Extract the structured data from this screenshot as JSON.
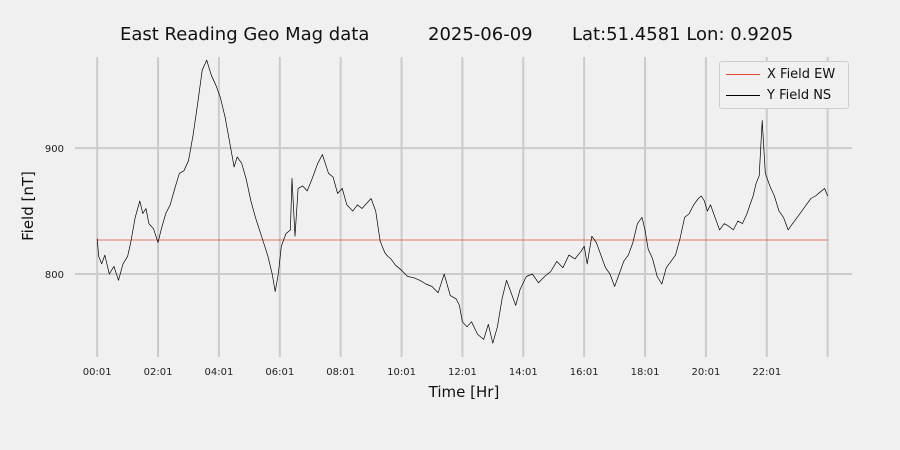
{
  "title": {
    "main": "East Reading Geo Mag data",
    "date": "2025-06-09",
    "location": "Lat:51.4581  Lon: 0.9205"
  },
  "colors": {
    "background": "#f0f0f0",
    "grid": "#cbcbcb",
    "x_series": "#e24a33",
    "y_series": "#000000"
  },
  "chart_data": {
    "type": "line",
    "title": "East Reading Geo Mag data        2025-06-09      Lat:51.4581  Lon: 0.9205",
    "xlabel": "Time  [Hr]",
    "ylabel": "Field  [nT]",
    "x_unit": "hours",
    "xlim": [
      -0.4,
      24.8
    ],
    "ylim": [
      734,
      982
    ],
    "x_ticks": [
      0,
      2,
      4,
      6,
      8,
      10,
      12,
      14,
      16,
      18,
      20,
      22,
      24
    ],
    "x_tick_labels": [
      "00:01",
      "02:01",
      "04:01",
      "06:01",
      "08:01",
      "10:01",
      "12:01",
      "14:01",
      "16:01",
      "18:01",
      "20:01",
      "22:01",
      ""
    ],
    "y_ticks": [
      800,
      900
    ],
    "y_tick_labels": [
      "800",
      "900"
    ],
    "grid": true,
    "legend_position": "top-right",
    "series": [
      {
        "name": "X Field EW",
        "color": "#e24a33",
        "x": [
          0,
          24
        ],
        "y": [
          827,
          827
        ]
      },
      {
        "name": "Y Field NS",
        "color": "#000000",
        "x": [
          0.0,
          0.05,
          0.15,
          0.25,
          0.4,
          0.55,
          0.7,
          0.85,
          1.0,
          1.1,
          1.25,
          1.4,
          1.5,
          1.6,
          1.7,
          1.85,
          2.0,
          2.1,
          2.25,
          2.4,
          2.55,
          2.7,
          2.85,
          3.0,
          3.15,
          3.3,
          3.45,
          3.6,
          3.75,
          3.9,
          4.05,
          4.2,
          4.35,
          4.5,
          4.6,
          4.75,
          4.9,
          5.05,
          5.2,
          5.4,
          5.6,
          5.75,
          5.85,
          5.95,
          6.05,
          6.2,
          6.35,
          6.4,
          6.5,
          6.6,
          6.75,
          6.9,
          7.05,
          7.25,
          7.4,
          7.6,
          7.75,
          7.9,
          8.05,
          8.2,
          8.4,
          8.55,
          8.7,
          8.85,
          9.0,
          9.15,
          9.3,
          9.45,
          9.55,
          9.65,
          9.8,
          10.0,
          10.2,
          10.4,
          10.6,
          10.8,
          11.0,
          11.2,
          11.4,
          11.6,
          11.8,
          11.9,
          12.0,
          12.15,
          12.3,
          12.5,
          12.7,
          12.85,
          13.0,
          13.15,
          13.3,
          13.45,
          13.6,
          13.75,
          13.9,
          14.1,
          14.3,
          14.5,
          14.7,
          14.9,
          15.1,
          15.3,
          15.5,
          15.7,
          15.9,
          16.0,
          16.1,
          16.25,
          16.4,
          16.55,
          16.7,
          16.85,
          17.0,
          17.15,
          17.3,
          17.45,
          17.6,
          17.75,
          17.9,
          18.0,
          18.1,
          18.25,
          18.4,
          18.55,
          18.7,
          18.85,
          19.0,
          19.15,
          19.3,
          19.45,
          19.6,
          19.75,
          19.85,
          19.95,
          20.05,
          20.15,
          20.3,
          20.45,
          20.6,
          20.75,
          20.9,
          21.05,
          21.2,
          21.35,
          21.45,
          21.55,
          21.65,
          21.75,
          21.85,
          21.95,
          22.1,
          22.25,
          22.4,
          22.55,
          22.7,
          22.85,
          23.0,
          23.15,
          23.3,
          23.45,
          23.6,
          23.75,
          23.9,
          24.0
        ],
        "y": [
          828,
          814,
          808,
          815,
          800,
          806,
          795,
          808,
          814,
          825,
          845,
          858,
          848,
          852,
          840,
          836,
          825,
          835,
          848,
          855,
          868,
          880,
          882,
          890,
          910,
          935,
          962,
          970,
          958,
          950,
          940,
          925,
          905,
          885,
          893,
          888,
          875,
          858,
          845,
          830,
          815,
          800,
          786,
          800,
          822,
          832,
          835,
          876,
          830,
          868,
          870,
          866,
          875,
          888,
          895,
          880,
          877,
          864,
          868,
          855,
          850,
          855,
          852,
          856,
          860,
          850,
          826,
          817,
          814,
          812,
          807,
          803,
          798,
          797,
          795,
          792,
          790,
          785,
          800,
          783,
          780,
          775,
          762,
          758,
          762,
          752,
          748,
          760,
          745,
          758,
          780,
          795,
          785,
          775,
          788,
          798,
          800,
          793,
          798,
          802,
          810,
          805,
          815,
          812,
          818,
          822,
          808,
          830,
          825,
          815,
          805,
          800,
          790,
          800,
          810,
          815,
          825,
          840,
          845,
          835,
          820,
          812,
          798,
          792,
          805,
          810,
          815,
          828,
          845,
          848,
          855,
          860,
          862,
          858,
          850,
          855,
          845,
          835,
          840,
          838,
          835,
          842,
          840,
          848,
          855,
          862,
          872,
          878,
          922,
          880,
          870,
          862,
          850,
          845,
          835,
          840,
          845,
          850,
          855,
          860,
          862,
          865,
          868,
          862
        ]
      }
    ]
  }
}
